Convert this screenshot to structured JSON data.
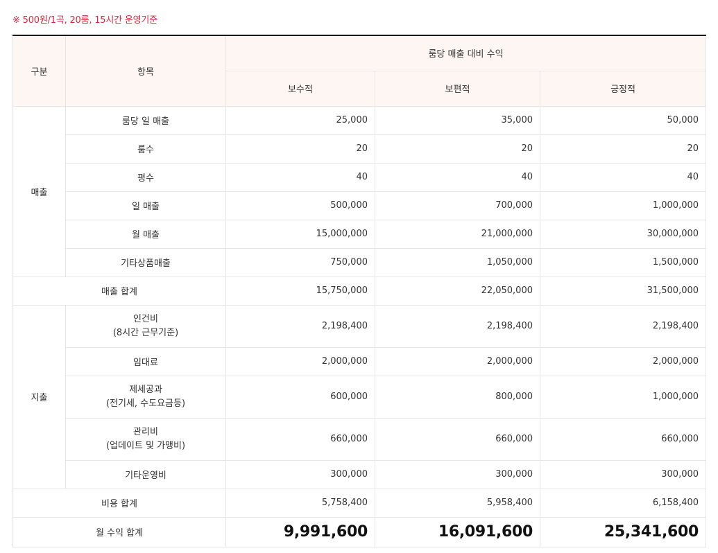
{
  "note": "※ 500원/1곡, 20룸, 15시간 운영기준",
  "header": {
    "category": "구분",
    "item": "항목",
    "group": "룸당 매출 대비 수익",
    "scenarios": [
      "보수적",
      "보편적",
      "긍정적"
    ]
  },
  "sales": {
    "category": "매출",
    "rows": [
      {
        "label": "룸당 일 매출",
        "values": [
          "25,000",
          "35,000",
          "50,000"
        ]
      },
      {
        "label": "룸수",
        "values": [
          "20",
          "20",
          "20"
        ]
      },
      {
        "label": "평수",
        "values": [
          "40",
          "40",
          "40"
        ]
      },
      {
        "label": "일 매출",
        "values": [
          "500,000",
          "700,000",
          "1,000,000"
        ]
      },
      {
        "label": "월 매출",
        "values": [
          "15,000,000",
          "21,000,000",
          "30,000,000"
        ]
      },
      {
        "label": "기타상품매출",
        "values": [
          "750,000",
          "1,050,000",
          "1,500,000"
        ]
      }
    ],
    "total": {
      "label": "매출 합계",
      "values": [
        "15,750,000",
        "22,050,000",
        "31,500,000"
      ]
    }
  },
  "expenses": {
    "category": "지출",
    "rows": [
      {
        "label": "인건비",
        "sublabel": "(8시간 근무기준)",
        "values": [
          "2,198,400",
          "2,198,400",
          "2,198,400"
        ]
      },
      {
        "label": "임대료",
        "values": [
          "2,000,000",
          "2,000,000",
          "2,000,000"
        ]
      },
      {
        "label": "제세공과",
        "sublabel": "(전기세, 수도요금등)",
        "values": [
          "600,000",
          "800,000",
          "1,000,000"
        ]
      },
      {
        "label": "관리비",
        "sublabel": "(업데이트 및 가맹비)",
        "values": [
          "660,000",
          "660,000",
          "660,000"
        ]
      },
      {
        "label": "기타운영비",
        "values": [
          "300,000",
          "300,000",
          "300,000"
        ]
      }
    ],
    "total": {
      "label": "비용 합계",
      "values": [
        "5,758,400",
        "5,958,400",
        "6,158,400"
      ]
    }
  },
  "profit": {
    "label": "월 수익 합계",
    "values": [
      "9,991,600",
      "16,091,600",
      "25,341,600"
    ]
  }
}
